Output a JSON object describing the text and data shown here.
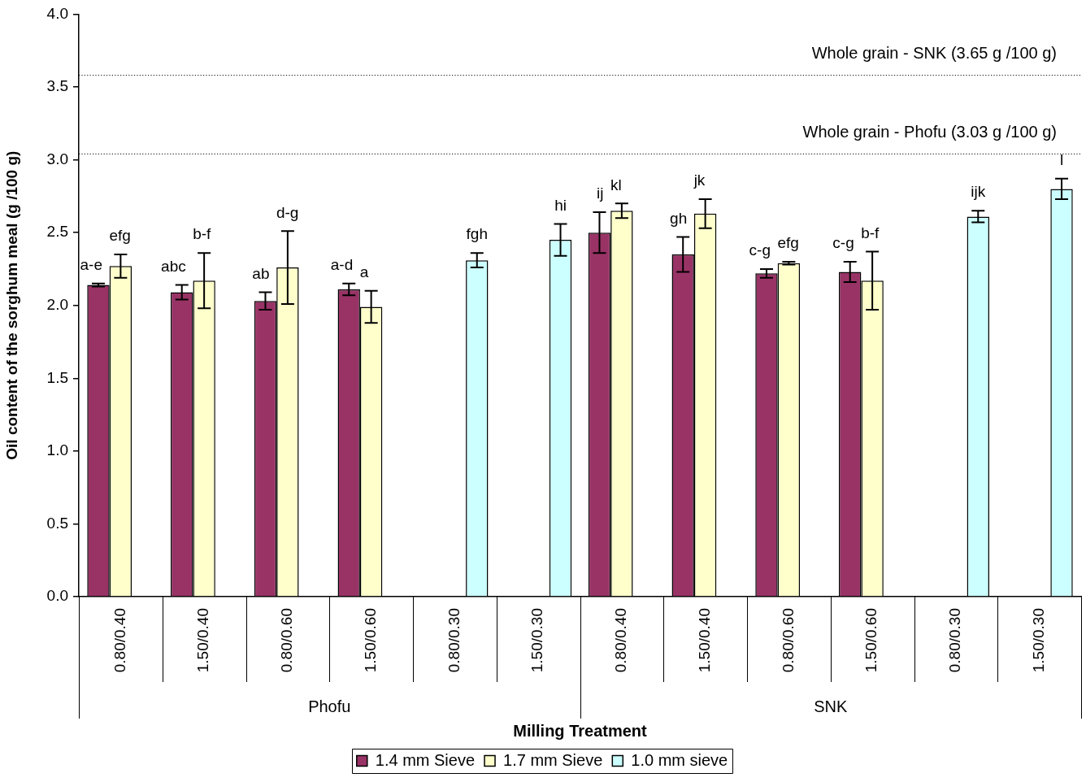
{
  "chart_data": {
    "type": "bar",
    "xlabel": "Milling Treatment",
    "ylabel": "Oil content of the sorghum meal (g /100 g)",
    "categories": [
      "0.80/0.40",
      "1.50/0.40",
      "0.80/0.60",
      "1.50/0.60",
      "0.80/0.30",
      "1.50/0.30",
      "0.80/0.40",
      "1.50/0.40",
      "0.80/0.60",
      "1.50/0.60",
      "0.80/0.30",
      "1.50/0.30"
    ],
    "series": [
      {
        "name": "1.4 mm Sieve",
        "color": "#993366",
        "values": [
          2.14,
          2.09,
          2.03,
          2.11,
          null,
          null,
          2.5,
          2.35,
          2.22,
          2.23,
          null,
          null
        ],
        "errors": [
          0.01,
          0.05,
          0.06,
          0.04,
          null,
          null,
          0.14,
          0.12,
          0.03,
          0.07,
          null,
          null
        ],
        "value_labels": [
          "a-e",
          "abc",
          "ab",
          "a-d",
          null,
          null,
          "ij",
          "gh",
          "c-g",
          "c-g",
          null,
          null
        ]
      },
      {
        "name": "1.7 mm Sieve",
        "color": "#ffffcc",
        "values": [
          2.27,
          2.17,
          2.26,
          1.99,
          null,
          null,
          2.65,
          2.63,
          2.29,
          2.17,
          null,
          null
        ],
        "errors": [
          0.08,
          0.19,
          0.25,
          0.11,
          null,
          null,
          0.05,
          0.1,
          0.01,
          0.2,
          null,
          null
        ],
        "value_labels": [
          "efg",
          "b-f",
          "d-g",
          "a",
          null,
          null,
          "kl",
          "jk",
          "efg",
          "b-f",
          null,
          null
        ]
      },
      {
        "name": "1.0 mm sieve",
        "color": "#ccffff",
        "values": [
          null,
          null,
          null,
          null,
          2.31,
          2.45,
          null,
          null,
          null,
          null,
          2.61,
          2.8
        ],
        "errors": [
          null,
          null,
          null,
          null,
          0.05,
          0.11,
          null,
          null,
          null,
          null,
          0.04,
          0.07
        ],
        "value_labels": [
          null,
          null,
          null,
          null,
          "fgh",
          "hi",
          null,
          null,
          null,
          null,
          "ijk",
          "l"
        ]
      }
    ],
    "ylim": [
      0,
      4
    ],
    "yticks": [
      {
        "value": 0,
        "label": "0.0"
      },
      {
        "value": 0.5,
        "label": "0.5"
      },
      {
        "value": 1,
        "label": "1.0"
      },
      {
        "value": 1.5,
        "label": "1.5"
      },
      {
        "value": 2,
        "label": "2.0"
      },
      {
        "value": 2.5,
        "label": "2.5"
      },
      {
        "value": 3,
        "label": "3.0"
      },
      {
        "value": 3.5,
        "label": "3.5"
      },
      {
        "value": 4,
        "label": "4.0"
      }
    ],
    "ref_lines": [
      {
        "axis": "y",
        "value": 3.58,
        "label": "Whole grain - SNK (3.65 g /100 g)",
        "line_style": "dotted"
      },
      {
        "axis": "y",
        "value": 3.04,
        "label": "Whole grain - Phofu (3.03 g /100 g)",
        "line_style": "dotted"
      }
    ],
    "annotations": [
      "Phofu",
      "SNK"
    ],
    "legend": "bottom"
  }
}
